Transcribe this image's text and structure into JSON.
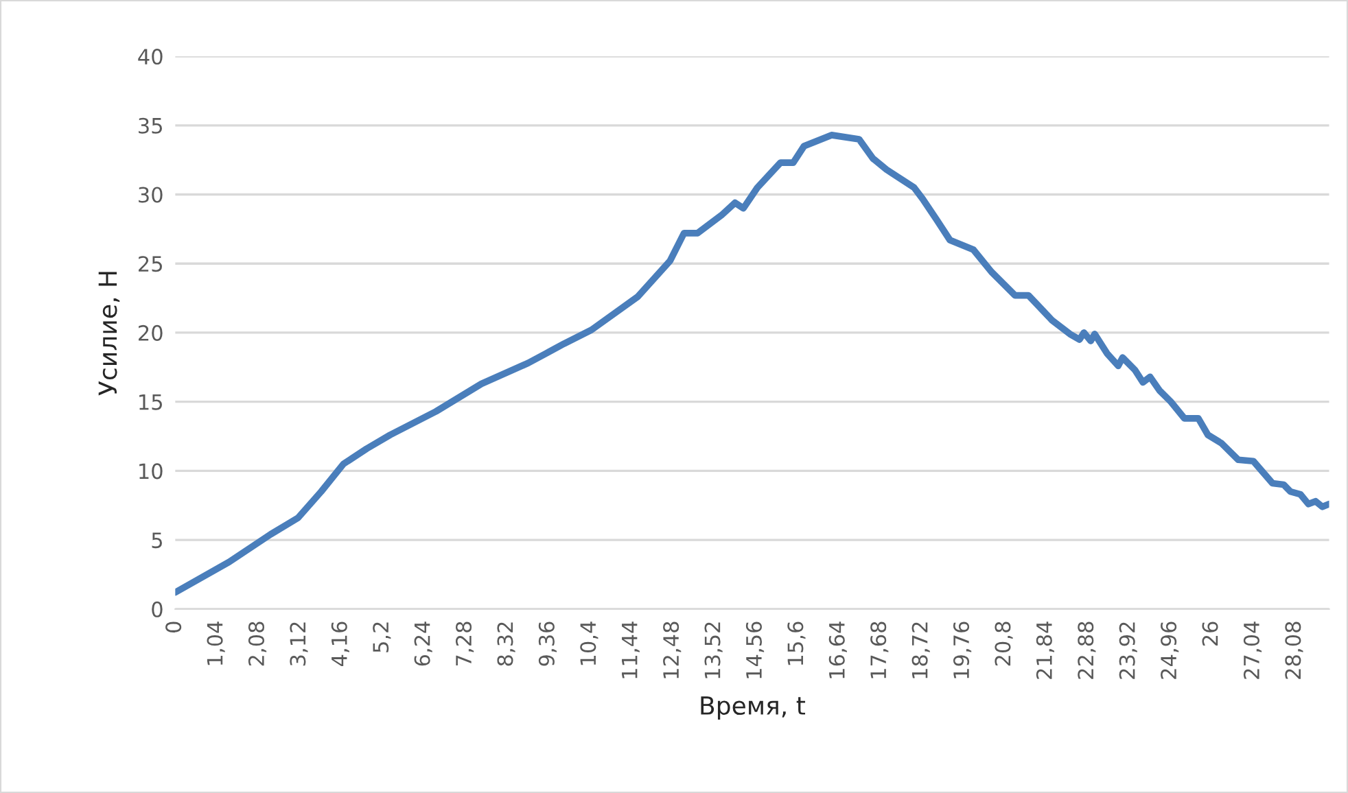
{
  "chart_data": {
    "type": "line",
    "xlabel": "Время, t",
    "ylabel": "Усилие, Н",
    "x": [
      0,
      1.35,
      2.39,
      3.08,
      3.66,
      4.22,
      4.8,
      5.39,
      6.54,
      7.68,
      8.85,
      9.3,
      9.75,
      10.44,
      11.6,
      12.41,
      12.76,
      13.1,
      13.7,
      14.04,
      14.25,
      14.6,
      15.18,
      15.5,
      15.77,
      16.46,
      17.15,
      17.5,
      17.84,
      18.53,
      18.74,
      19.09,
      19.43,
      20.02,
      20.47,
      21.06,
      21.4,
      21.99,
      22.44,
      22.68,
      22.79,
      22.96,
      23.06,
      23.37,
      23.65,
      23.76,
      24.07,
      24.27,
      24.45,
      24.69,
      24.97,
      25.31,
      25.66,
      25.9,
      26.24,
      26.66,
      27.04,
      27.52,
      27.8,
      27.97,
      28.22,
      28.42,
      28.6,
      28.77,
      28.94
    ],
    "series": [
      {
        "color": "#4a7ebb",
        "values": [
          1.2,
          3.4,
          5.4,
          6.6,
          8.5,
          10.5,
          11.6,
          12.6,
          14.3,
          16.3,
          17.8,
          18.5,
          19.2,
          20.2,
          22.6,
          25.2,
          27.2,
          27.2,
          28.5,
          29.4,
          29.0,
          30.5,
          32.3,
          32.3,
          33.5,
          34.3,
          34.0,
          32.6,
          31.8,
          30.5,
          29.7,
          28.2,
          26.7,
          26.0,
          24.4,
          22.7,
          22.7,
          20.9,
          19.9,
          19.5,
          20.0,
          19.4,
          19.9,
          18.5,
          17.6,
          18.2,
          17.3,
          16.4,
          16.8,
          15.8,
          15.0,
          13.8,
          13.8,
          12.6,
          12.0,
          10.8,
          10.7,
          9.1,
          9.0,
          8.5,
          8.3,
          7.6,
          7.8,
          7.4,
          7.6
        ]
      }
    ],
    "xlim": [
      0,
      28.94
    ],
    "xticks": [
      0,
      {
        "value": 1.04,
        "label": "1,04"
      },
      {
        "value": 2.08,
        "label": "2,08"
      },
      {
        "value": 3.12,
        "label": "3,12"
      },
      {
        "value": 4.16,
        "label": "4,16"
      },
      {
        "value": 5.2,
        "label": "5,2"
      },
      {
        "value": 6.24,
        "label": "6,24"
      },
      {
        "value": 7.28,
        "label": "7,28"
      },
      {
        "value": 8.32,
        "label": "8,32"
      },
      {
        "value": 9.36,
        "label": "9,36"
      },
      {
        "value": 10.4,
        "label": "10,4"
      },
      {
        "value": 11.44,
        "label": "11,44"
      },
      {
        "value": 12.48,
        "label": "12,48"
      },
      {
        "value": 13.52,
        "label": "13,52"
      },
      {
        "value": 14.56,
        "label": "14,56"
      },
      {
        "value": 15.6,
        "label": "15,6"
      },
      {
        "value": 16.64,
        "label": "16,64"
      },
      {
        "value": 17.68,
        "label": "17,68"
      },
      {
        "value": 18.72,
        "label": "18,72"
      },
      {
        "value": 19.76,
        "label": "19,76"
      },
      {
        "value": 20.8,
        "label": "20,8"
      },
      {
        "value": 21.84,
        "label": "21,84"
      },
      {
        "value": 22.88,
        "label": "22,88"
      },
      {
        "value": 23.92,
        "label": "23,92"
      },
      {
        "value": 24.96,
        "label": "24,96"
      },
      26,
      {
        "value": 27.04,
        "label": "27,04"
      },
      {
        "value": 28.08,
        "label": "28,08"
      }
    ],
    "ylim": [
      0,
      40
    ],
    "yticks": [
      0,
      5,
      10,
      15,
      20,
      25,
      30,
      35,
      40
    ],
    "grid": "y",
    "legend": false,
    "line_style": "solid",
    "marker": "none"
  }
}
